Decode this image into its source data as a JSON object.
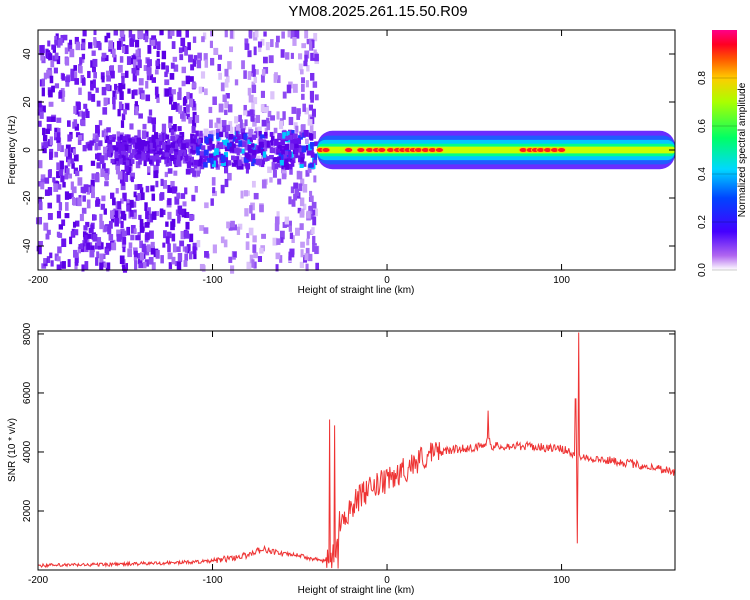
{
  "title": "YM08.2025.261.15.50.R09",
  "chart_data": [
    {
      "type": "heatmap",
      "xlabel": "Height of straight line (km)",
      "ylabel": "Frequency (Hz)",
      "xlim": [
        -200,
        165
      ],
      "ylim": [
        -50,
        50
      ],
      "xticks": [
        -200,
        -100,
        0,
        100
      ],
      "xtick_labels": [
        "-200",
        "-100",
        "0",
        "100"
      ],
      "yticks": [
        -40,
        -20,
        0,
        20,
        40
      ],
      "ytick_labels": [
        "-40",
        "-20",
        "0",
        "20",
        "40"
      ],
      "colorbar": {
        "label": "Normalized spectral amplitude",
        "range": [
          0,
          1
        ],
        "ticks": [
          0,
          0.2,
          0.4,
          0.6,
          0.8
        ],
        "tick_labels": [
          "0.0",
          "0.2",
          "0.4",
          "0.6",
          "0.8"
        ]
      },
      "features": {
        "noise_region_x": [
          -200,
          -40
        ],
        "signal_line_freq_hz": 0,
        "signal_start_x": -40,
        "peak_amplitude_x": [
          -40,
          10,
          80,
          100
        ]
      }
    },
    {
      "type": "line",
      "xlabel": "Height of straight line (km)",
      "ylabel": "SNR (10 * v/v)",
      "xlim": [
        -200,
        165
      ],
      "ylim": [
        0,
        8100
      ],
      "xticks": [
        -200,
        -100,
        0,
        100
      ],
      "xtick_labels": [
        "-200",
        "-100",
        "0",
        "100"
      ],
      "yticks": [
        2000,
        4000,
        6000,
        8000
      ],
      "ytick_labels": [
        "2000",
        "4000",
        "6000",
        "8000"
      ],
      "color": "#ee3333",
      "series": [
        {
          "name": "SNR",
          "x": [
            -200,
            -150,
            -120,
            -100,
            -90,
            -80,
            -75,
            -70,
            -60,
            -50,
            -45,
            -40,
            -35,
            -30,
            -28,
            -25,
            -20,
            -15,
            -10,
            -5,
            0,
            5,
            10,
            15,
            20,
            25,
            30,
            40,
            50,
            55,
            58,
            60,
            70,
            80,
            90,
            100,
            105,
            108,
            110,
            115,
            120,
            130,
            140,
            150,
            160,
            165
          ],
          "y": [
            150,
            200,
            250,
            300,
            400,
            500,
            650,
            700,
            550,
            500,
            400,
            350,
            300,
            500,
            1500,
            1800,
            2200,
            2500,
            2700,
            2900,
            3000,
            3200,
            3400,
            3600,
            3800,
            3900,
            4000,
            4100,
            4150,
            4200,
            4500,
            4200,
            4200,
            4200,
            4150,
            4100,
            4000,
            3800,
            3900,
            3800,
            3750,
            3700,
            3600,
            3500,
            3400,
            3300
          ]
        }
      ],
      "spikes": [
        {
          "x": 110,
          "y": 8050
        },
        {
          "x": 108,
          "y": 5800
        },
        {
          "x": 58,
          "y": 5400
        },
        {
          "x": -33,
          "y": 5100
        },
        {
          "x": -30,
          "y": 4900
        }
      ],
      "dips": [
        {
          "x": 109,
          "y": 900
        },
        {
          "x": -28,
          "y": 50
        }
      ]
    }
  ]
}
